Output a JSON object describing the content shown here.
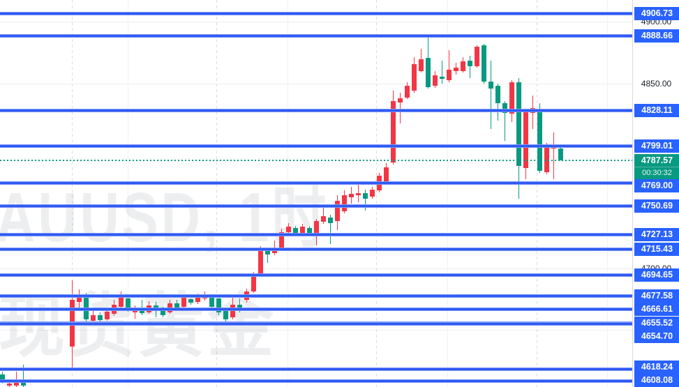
{
  "watermark": {
    "line1": "AUUSD, 1时",
    "line2": "现货黄金"
  },
  "price_axis": {
    "top_price": 4917.8,
    "bottom_price": 4603.5,
    "ticks": [
      {
        "label": "4900.00",
        "price": 4900.0
      },
      {
        "label": "4850.00",
        "price": 4850.0
      },
      {
        "label": "4700.00",
        "price": 4700.0
      }
    ]
  },
  "levels": [
    {
      "label": "4906.73",
      "price": 4906.73
    },
    {
      "label": "4888.66",
      "price": 4888.66
    },
    {
      "label": "4828.11",
      "price": 4828.11
    },
    {
      "label": "4799.01",
      "price": 4799.01
    },
    {
      "label": "4769.00",
      "price": 4769.0
    },
    {
      "label": "4750.69",
      "price": 4750.69
    },
    {
      "label": "4727.13",
      "price": 4727.13
    },
    {
      "label": "4715.43",
      "price": 4715.43
    },
    {
      "label": "4694.65",
      "price": 4694.65
    },
    {
      "label": "4677.58",
      "price": 4677.58
    },
    {
      "label": "4666.61",
      "price": 4666.61
    },
    {
      "label": "4655.52",
      "price": 4655.52
    },
    {
      "label": "4654.70",
      "price": 4654.7
    },
    {
      "label": "4618.24",
      "price": 4618.24
    },
    {
      "label": "4608.08",
      "price": 4608.08
    }
  ],
  "current_price": {
    "price": 4787.57,
    "label": "4787.57",
    "countdown": "00:30:32"
  },
  "grid": {
    "h_prices": [
      4900,
      4850,
      4800,
      4750,
      4700,
      4650
    ],
    "v_solid": [
      183,
      412,
      641,
      870
    ],
    "v_dashed": [
      103,
      310,
      539,
      769
    ]
  },
  "colors": {
    "up": "#f23645",
    "down": "#089981",
    "level_line": "#2b58f2",
    "level_label_bg": "#2962ff",
    "current_label_bg": "#089981",
    "axis_text": "#1b1f27"
  },
  "chart_data": {
    "type": "candlestick",
    "title_watermark": "AUUSD, 1时 / 现货黄金",
    "interval": "1时",
    "up_color_convention": "red-up-green-down",
    "visible_price_range": [
      4603.5,
      4917.8
    ],
    "columns": [
      "x_px",
      "open",
      "high",
      "low",
      "close"
    ],
    "candles": [
      [
        3,
        4613.7,
        4616.0,
        4606.4,
        4607.5
      ],
      [
        13,
        4604.7,
        4609.8,
        4603.6,
        4606.4
      ],
      [
        23,
        4604.7,
        4616.0,
        4603.6,
        4607.5
      ],
      [
        33,
        4609.2,
        4621.6,
        4603.6,
        4604.7
      ],
      [
        103,
        4636.4,
        4690.2,
        4617.7,
        4674.3
      ],
      [
        113,
        4672.7,
        4682.8,
        4667.6,
        4676.0
      ],
      [
        123,
        4676.0,
        4680.0,
        4656.2,
        4658.5
      ],
      [
        133,
        4657.4,
        4665.9,
        4654.6,
        4661.9
      ],
      [
        143,
        4661.9,
        4664.2,
        4656.2,
        4658.0
      ],
      [
        153,
        4658.5,
        4667.6,
        4657.4,
        4664.8
      ],
      [
        163,
        4663.0,
        4674.3,
        4661.3,
        4670.4
      ],
      [
        173,
        4668.7,
        4681.1,
        4666.4,
        4676.0
      ],
      [
        183,
        4675.4,
        4677.7,
        4664.8,
        4667.0
      ],
      [
        193,
        4664.2,
        4669.8,
        4659.1,
        4667.0
      ],
      [
        203,
        4665.9,
        4674.3,
        4661.9,
        4663.6
      ],
      [
        213,
        4664.2,
        4673.2,
        4663.0,
        4669.8
      ],
      [
        223,
        4669.8,
        4672.7,
        4660.2,
        4665.9
      ],
      [
        233,
        4665.9,
        4668.7,
        4660.2,
        4661.9
      ],
      [
        243,
        4664.2,
        4674.3,
        4663.0,
        4671.5
      ],
      [
        253,
        4671.5,
        4674.3,
        4665.3,
        4667.0
      ],
      [
        263,
        4668.7,
        4677.7,
        4667.0,
        4676.0
      ],
      [
        273,
        4674.9,
        4675.4,
        4670.4,
        4672.1
      ],
      [
        283,
        4672.7,
        4679.4,
        4670.9,
        4677.1
      ],
      [
        293,
        4675.4,
        4681.1,
        4673.8,
        4678.3
      ],
      [
        303,
        4677.1,
        4678.8,
        4667.0,
        4668.7
      ],
      [
        313,
        4675.4,
        4677.1,
        4661.9,
        4664.2
      ],
      [
        323,
        4665.9,
        4667.6,
        4656.8,
        4658.5
      ],
      [
        333,
        4660.2,
        4676.0,
        4658.5,
        4670.4
      ],
      [
        343,
        4670.4,
        4675.4,
        4664.2,
        4667.6
      ],
      [
        353,
        4674.3,
        4683.4,
        4672.1,
        4681.1
      ],
      [
        363,
        4681.1,
        4697.0,
        4680.0,
        4695.3
      ],
      [
        373,
        4695.8,
        4717.9,
        4694.7,
        4715.7
      ],
      [
        383,
        4715.1,
        4716.8,
        4704.4,
        4711.2
      ],
      [
        393,
        4712.3,
        4722.5,
        4710.6,
        4715.1
      ],
      [
        403,
        4716.8,
        4732.1,
        4715.7,
        4729.3
      ],
      [
        413,
        4729.3,
        4736.6,
        4727.6,
        4733.8
      ],
      [
        423,
        4732.7,
        4734.4,
        4726.5,
        4728.2
      ],
      [
        433,
        4728.2,
        4736.1,
        4727.0,
        4733.8
      ],
      [
        443,
        4732.7,
        4734.4,
        4727.0,
        4728.7
      ],
      [
        453,
        4727.0,
        4740.0,
        4718.5,
        4738.3
      ],
      [
        463,
        4737.7,
        4749.7,
        4736.1,
        4742.3
      ],
      [
        473,
        4741.1,
        4743.4,
        4719.6,
        4736.6
      ],
      [
        483,
        4738.3,
        4759.3,
        4731.0,
        4754.8
      ],
      [
        493,
        4746.3,
        4763.3,
        4744.6,
        4759.3
      ],
      [
        503,
        4757.6,
        4766.1,
        4752.5,
        4760.4
      ],
      [
        513,
        4759.3,
        4767.8,
        4753.6,
        4761.0
      ],
      [
        523,
        4761.0,
        4763.8,
        4746.9,
        4756.5
      ],
      [
        533,
        4758.2,
        4766.1,
        4756.5,
        4763.8
      ],
      [
        543,
        4763.3,
        4777.4,
        4761.6,
        4775.1
      ],
      [
        553,
        4770.6,
        4785.3,
        4768.3,
        4781.9
      ],
      [
        563,
        4785.9,
        4844.2,
        4784.2,
        4835.7
      ],
      [
        573,
        4834.6,
        4842.5,
        4817.6,
        4838.0
      ],
      [
        583,
        4838.6,
        4851.0,
        4837.4,
        4848.2
      ],
      [
        593,
        4844.2,
        4871.4,
        4842.5,
        4865.7
      ],
      [
        603,
        4860.0,
        4878.2,
        4858.9,
        4869.7
      ],
      [
        613,
        4870.8,
        4889.0,
        4845.9,
        4847.1
      ],
      [
        623,
        4848.2,
        4860.0,
        4846.5,
        4856.7
      ],
      [
        633,
        4855.5,
        4868.6,
        4849.9,
        4853.9
      ],
      [
        643,
        4852.7,
        4877.1,
        4851.0,
        4861.2
      ],
      [
        653,
        4860.0,
        4866.9,
        4857.2,
        4862.9
      ],
      [
        663,
        4860.0,
        4871.4,
        4858.9,
        4868.0
      ],
      [
        673,
        4868.6,
        4872.5,
        4854.4,
        4864.0
      ],
      [
        683,
        4864.0,
        4881.0,
        4862.9,
        4879.9
      ],
      [
        693,
        4881.0,
        4882.2,
        4849.9,
        4851.6
      ],
      [
        703,
        4851.6,
        4868.6,
        4813.1,
        4845.9
      ],
      [
        713,
        4848.2,
        4849.9,
        4819.9,
        4834.0
      ],
      [
        723,
        4834.0,
        4835.7,
        4803.4,
        4826.1
      ],
      [
        733,
        4825.5,
        4852.7,
        4818.7,
        4851.0
      ],
      [
        743,
        4851.0,
        4854.4,
        4756.5,
        4783.1
      ],
      [
        753,
        4781.4,
        4828.4,
        4772.3,
        4826.7
      ],
      [
        763,
        4826.1,
        4840.3,
        4813.1,
        4830.1
      ],
      [
        773,
        4828.4,
        4834.0,
        4777.4,
        4779.1
      ],
      [
        783,
        4778.0,
        4801.7,
        4776.3,
        4798.9
      ],
      [
        793,
        4797.2,
        4810.2,
        4772.3,
        4798.9
      ],
      [
        803,
        4797.2,
        4798.9,
        4787.57,
        4787.57
      ]
    ]
  }
}
